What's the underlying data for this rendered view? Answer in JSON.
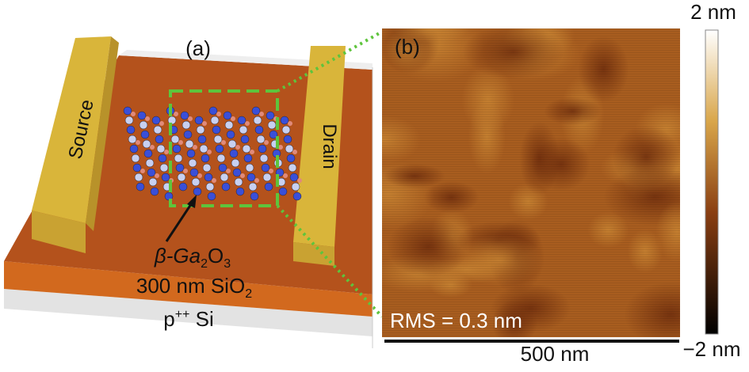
{
  "panel_a": {
    "label": "(a)",
    "electrodes": [
      "Source",
      "Drain"
    ],
    "channel": [
      "β-Ga",
      "2",
      "O",
      "3"
    ],
    "oxide": [
      "300 nm SiO",
      "2"
    ],
    "substrate": [
      "p",
      "++",
      " Si"
    ]
  },
  "panel_b": {
    "label": "(b)",
    "rms": "RMS = 0.3 nm",
    "scale_bar": "500 nm",
    "colorbar": {
      "max": "2 nm",
      "min": "−2 nm"
    }
  }
}
